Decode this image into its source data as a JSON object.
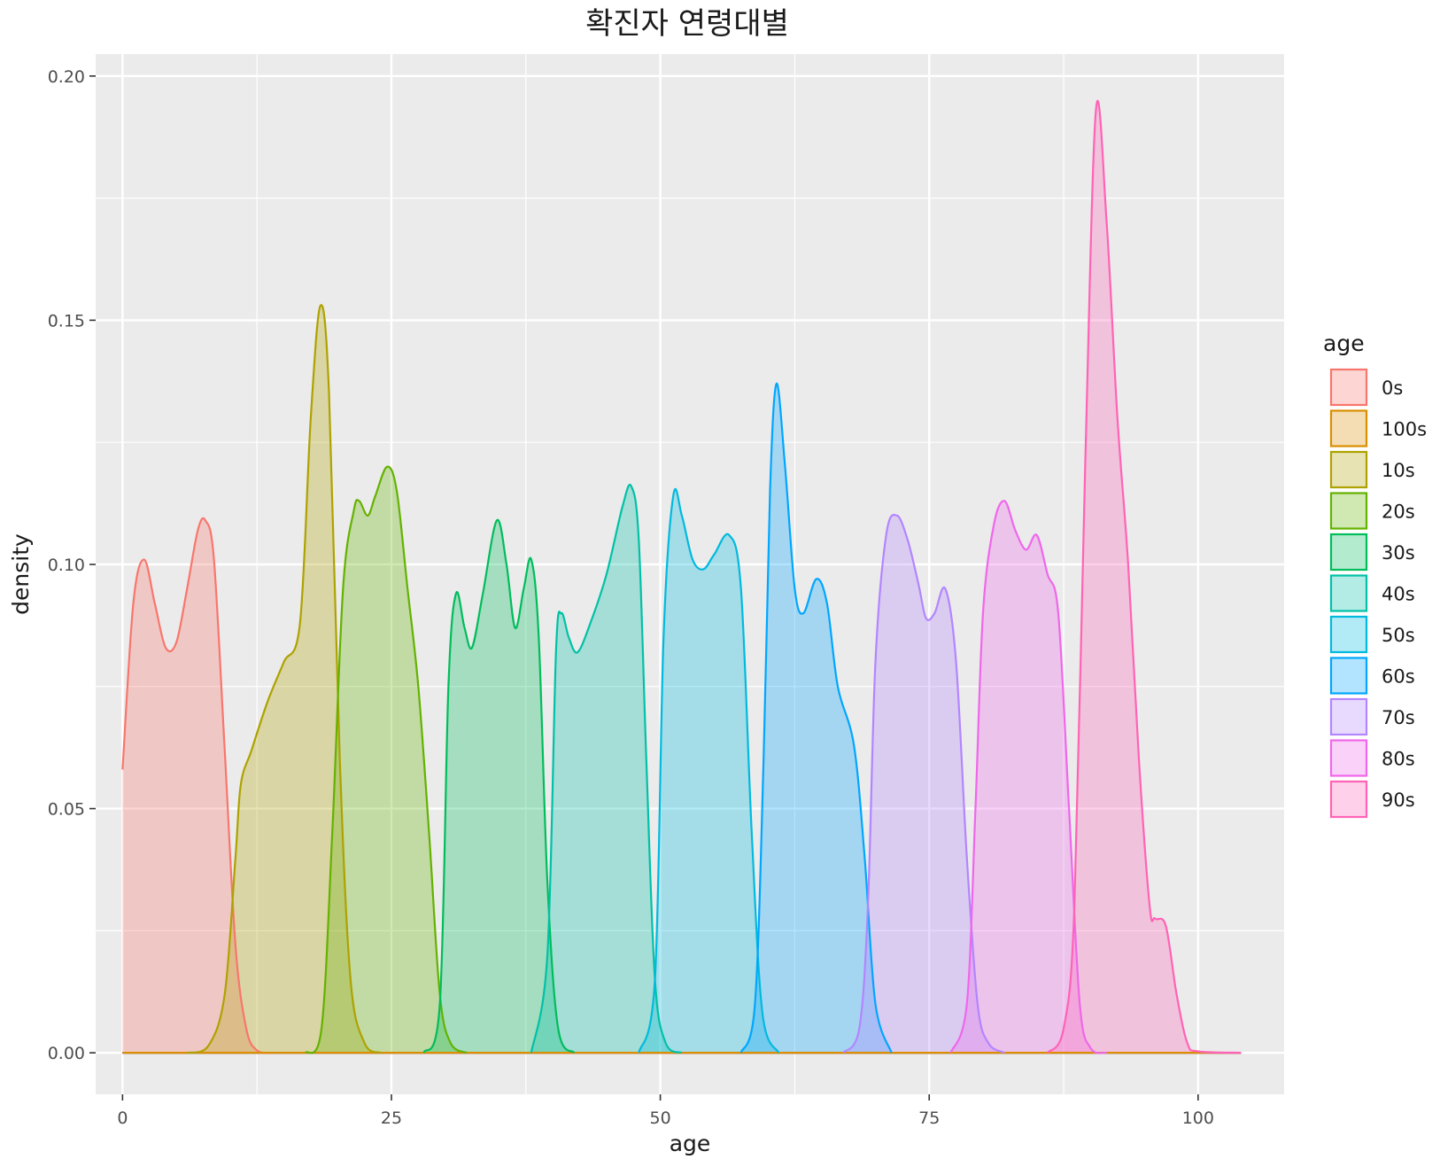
{
  "chart_data": {
    "type": "area",
    "title": "확진자 연령대별",
    "xlabel": "age",
    "ylabel": "density",
    "xlim": [
      -2.5,
      108
    ],
    "ylim": [
      -0.0085,
      0.2045
    ],
    "x_ticks": [
      "0",
      "25",
      "50",
      "75",
      "100"
    ],
    "y_ticks": [
      "0.00",
      "0.05",
      "0.10",
      "0.15",
      "0.20"
    ],
    "grid": true,
    "legend": {
      "title": "age",
      "position": "right"
    },
    "fill_opacity": 0.3,
    "series": [
      {
        "name": "0s",
        "color": "#F8766D",
        "points": [
          [
            0,
            0.058
          ],
          [
            1,
            0.092
          ],
          [
            2,
            0.101
          ],
          [
            3,
            0.092
          ],
          [
            4,
            0.083
          ],
          [
            5,
            0.084
          ],
          [
            6,
            0.095
          ],
          [
            7,
            0.107
          ],
          [
            7.7,
            0.109
          ],
          [
            8.5,
            0.101
          ],
          [
            9.5,
            0.062
          ],
          [
            10.5,
            0.022
          ],
          [
            11.5,
            0.005
          ],
          [
            12.5,
            0.0005
          ],
          [
            14,
            0
          ]
        ]
      },
      {
        "name": "100s",
        "color": "#DB8E00",
        "points": [
          [
            0,
            0
          ],
          [
            104,
            0
          ]
        ]
      },
      {
        "name": "10s",
        "color": "#AEA200",
        "points": [
          [
            6,
            0
          ],
          [
            8,
            0.0015
          ],
          [
            9.5,
            0.012
          ],
          [
            10.5,
            0.04
          ],
          [
            11,
            0.055
          ],
          [
            12,
            0.062
          ],
          [
            13.5,
            0.072
          ],
          [
            15,
            0.08
          ],
          [
            16.5,
            0.088
          ],
          [
            17.5,
            0.13
          ],
          [
            18.4,
            0.153
          ],
          [
            19.2,
            0.135
          ],
          [
            20.2,
            0.06
          ],
          [
            21.2,
            0.015
          ],
          [
            22.5,
            0.002
          ],
          [
            24,
            0
          ]
        ]
      },
      {
        "name": "20s",
        "color": "#64B200",
        "points": [
          [
            17,
            0
          ],
          [
            18.5,
            0.005
          ],
          [
            19.5,
            0.045
          ],
          [
            20.5,
            0.095
          ],
          [
            21.5,
            0.111
          ],
          [
            22,
            0.113
          ],
          [
            22.8,
            0.11
          ],
          [
            23.5,
            0.114
          ],
          [
            24.6,
            0.12
          ],
          [
            25.5,
            0.115
          ],
          [
            26.5,
            0.095
          ],
          [
            27.5,
            0.075
          ],
          [
            28.5,
            0.045
          ],
          [
            29.5,
            0.012
          ],
          [
            30.5,
            0.002
          ],
          [
            32,
            0
          ]
        ]
      },
      {
        "name": "30s",
        "color": "#00BD5C",
        "points": [
          [
            28,
            0
          ],
          [
            29.5,
            0.01
          ],
          [
            30.3,
            0.075
          ],
          [
            31,
            0.094
          ],
          [
            31.8,
            0.087
          ],
          [
            32.5,
            0.083
          ],
          [
            33.5,
            0.094
          ],
          [
            34.8,
            0.109
          ],
          [
            35.7,
            0.1
          ],
          [
            36.5,
            0.087
          ],
          [
            37.3,
            0.095
          ],
          [
            38,
            0.101
          ],
          [
            38.7,
            0.085
          ],
          [
            39.5,
            0.035
          ],
          [
            40.5,
            0.005
          ],
          [
            42,
            0
          ]
        ]
      },
      {
        "name": "40s",
        "color": "#00C1A7",
        "points": [
          [
            38,
            0
          ],
          [
            39.5,
            0.02
          ],
          [
            40.3,
            0.082
          ],
          [
            40.8,
            0.09
          ],
          [
            41.5,
            0.085
          ],
          [
            42.3,
            0.082
          ],
          [
            43.5,
            0.088
          ],
          [
            45,
            0.098
          ],
          [
            46.5,
            0.112
          ],
          [
            47.3,
            0.116
          ],
          [
            48,
            0.105
          ],
          [
            48.7,
            0.06
          ],
          [
            49.5,
            0.015
          ],
          [
            50.5,
            0.002
          ],
          [
            52,
            0
          ]
        ]
      },
      {
        "name": "50s",
        "color": "#00BADE",
        "points": [
          [
            48,
            0
          ],
          [
            49.5,
            0.015
          ],
          [
            50.3,
            0.085
          ],
          [
            51.2,
            0.114
          ],
          [
            52,
            0.11
          ],
          [
            53,
            0.101
          ],
          [
            54,
            0.099
          ],
          [
            55,
            0.102
          ],
          [
            56.4,
            0.106
          ],
          [
            57.5,
            0.095
          ],
          [
            58.5,
            0.045
          ],
          [
            59.5,
            0.008
          ],
          [
            61,
            0
          ]
        ]
      },
      {
        "name": "60s",
        "color": "#00A6FF",
        "points": [
          [
            57.5,
            0
          ],
          [
            58.8,
            0.01
          ],
          [
            59.6,
            0.06
          ],
          [
            60.2,
            0.115
          ],
          [
            60.8,
            0.137
          ],
          [
            61.6,
            0.12
          ],
          [
            62.5,
            0.095
          ],
          [
            63.3,
            0.09
          ],
          [
            64.5,
            0.097
          ],
          [
            65.5,
            0.092
          ],
          [
            66.5,
            0.075
          ],
          [
            68,
            0.063
          ],
          [
            69,
            0.04
          ],
          [
            70,
            0.01
          ],
          [
            71.5,
            0
          ]
        ]
      },
      {
        "name": "70s",
        "color": "#B385FF",
        "points": [
          [
            67,
            0
          ],
          [
            68.5,
            0.005
          ],
          [
            69.3,
            0.03
          ],
          [
            70,
            0.08
          ],
          [
            71,
            0.106
          ],
          [
            72,
            0.11
          ],
          [
            73,
            0.105
          ],
          [
            74,
            0.096
          ],
          [
            74.7,
            0.089
          ],
          [
            75.5,
            0.09
          ],
          [
            76.5,
            0.095
          ],
          [
            77.5,
            0.08
          ],
          [
            78.5,
            0.04
          ],
          [
            79.5,
            0.01
          ],
          [
            80.5,
            0.002
          ],
          [
            82,
            0
          ]
        ]
      },
      {
        "name": "80s",
        "color": "#EF67EB",
        "points": [
          [
            77,
            0
          ],
          [
            78.5,
            0.01
          ],
          [
            79.3,
            0.05
          ],
          [
            80,
            0.09
          ],
          [
            81,
            0.108
          ],
          [
            82,
            0.113
          ],
          [
            83,
            0.107
          ],
          [
            84,
            0.103
          ],
          [
            85,
            0.106
          ],
          [
            86,
            0.098
          ],
          [
            87,
            0.09
          ],
          [
            88,
            0.05
          ],
          [
            89,
            0.01
          ],
          [
            90,
            0.001
          ],
          [
            91.5,
            0
          ]
        ]
      },
      {
        "name": "90s",
        "color": "#FF63B6",
        "points": [
          [
            86,
            0
          ],
          [
            87.5,
            0.005
          ],
          [
            88.5,
            0.03
          ],
          [
            89.5,
            0.12
          ],
          [
            90.5,
            0.193
          ],
          [
            91.5,
            0.17
          ],
          [
            92.5,
            0.13
          ],
          [
            93.5,
            0.1
          ],
          [
            94.5,
            0.06
          ],
          [
            95.5,
            0.03
          ],
          [
            96,
            0.0275
          ],
          [
            97,
            0.026
          ],
          [
            98,
            0.012
          ],
          [
            99,
            0.002
          ],
          [
            100,
            0.0003
          ],
          [
            104,
            0
          ]
        ]
      }
    ]
  }
}
